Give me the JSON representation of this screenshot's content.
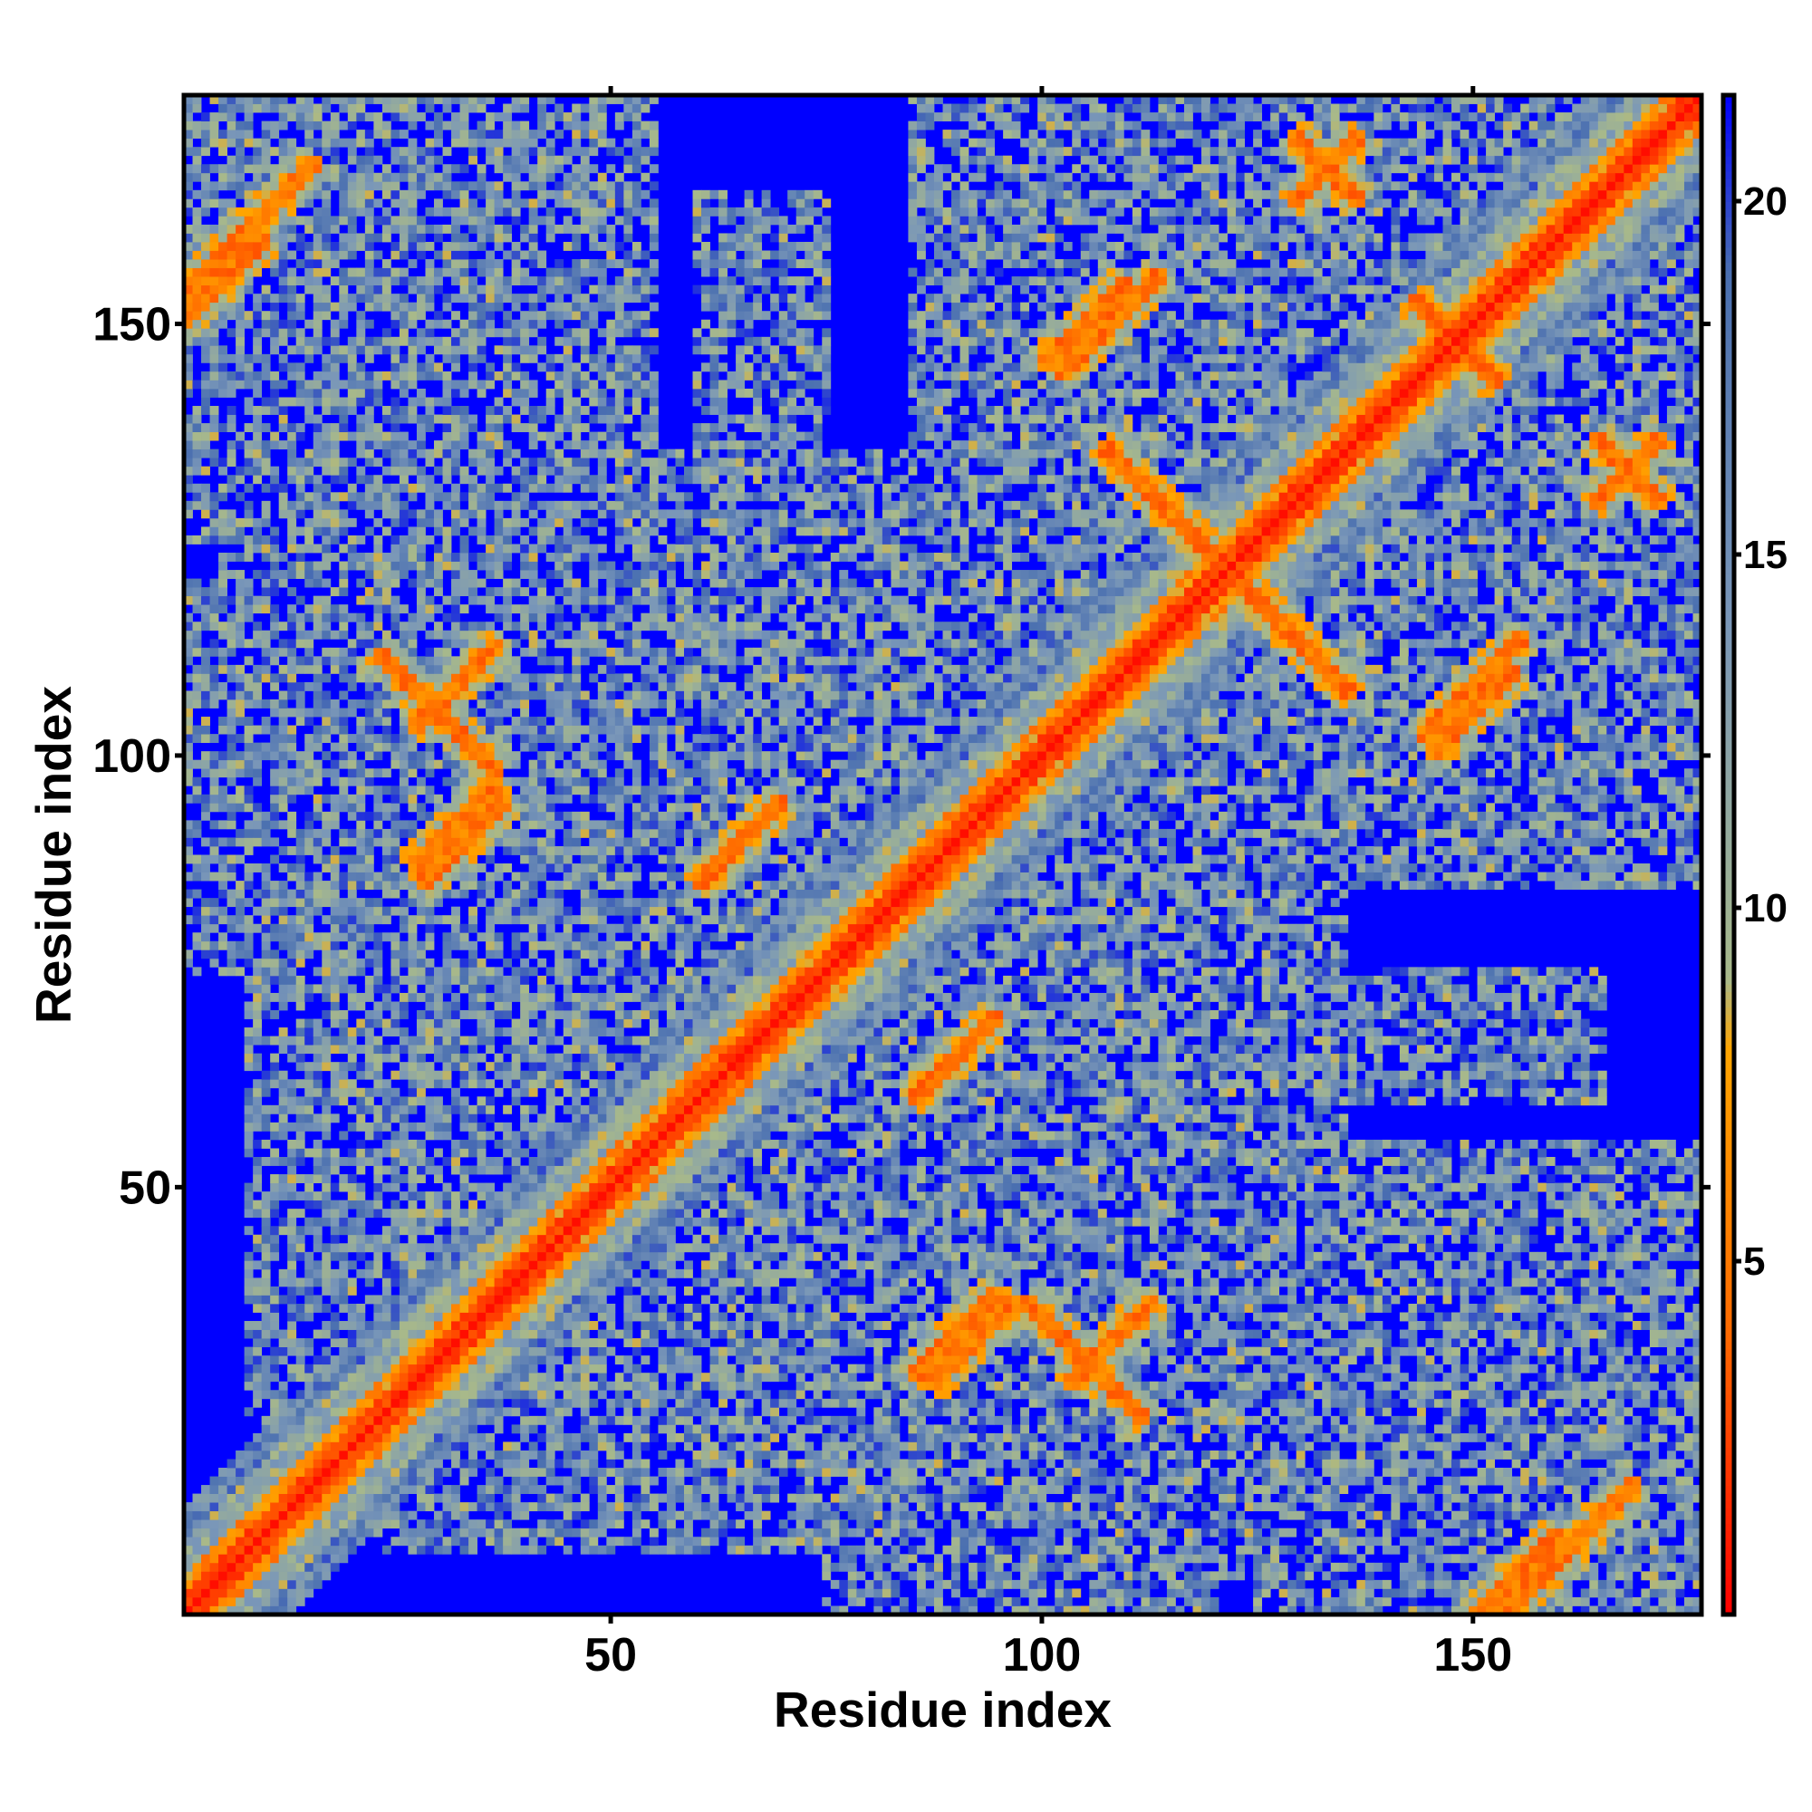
{
  "chart_data": {
    "type": "heatmap",
    "title": "",
    "xlabel": "Residue index",
    "ylabel": "Residue index",
    "n_residues": 176,
    "xlim": [
      1,
      176
    ],
    "ylim": [
      1,
      176
    ],
    "x_ticks": [
      "50",
      "100",
      "150"
    ],
    "x_tick_values": [
      50,
      100,
      150
    ],
    "y_ticks": [
      "50",
      "100",
      "150"
    ],
    "y_tick_values": [
      50,
      100,
      150
    ],
    "colorbar": {
      "ticks": [
        "5",
        "10",
        "15",
        "20"
      ],
      "tick_values": [
        5,
        10,
        15,
        20
      ],
      "range": [
        0,
        21.5
      ],
      "colors": [
        "#ff0000",
        "#ff6a00",
        "#ffa500",
        "#a8b98a",
        "#7a97b8",
        "#4a6fb0",
        "#0000ff"
      ],
      "color_stops": [
        0,
        4,
        8,
        9,
        14,
        19,
        21.5
      ]
    },
    "background_color": "#0000ff",
    "grid": false,
    "contact_regions": [
      {
        "xc": 2,
        "yc": 155,
        "length": 28,
        "orientation": "parallel",
        "width": 3
      },
      {
        "xc": 30,
        "yc": 105,
        "length": 14,
        "orientation": "anti",
        "width": 3
      },
      {
        "xc": 33,
        "yc": 90,
        "length": 10,
        "orientation": "parallel",
        "width": 3
      },
      {
        "xc": 65,
        "yc": 90,
        "length": 10,
        "orientation": "parallel",
        "width": 3
      },
      {
        "xc": 90,
        "yc": 65,
        "length": 10,
        "orientation": "parallel",
        "width": 3
      },
      {
        "xc": 92,
        "yc": 32,
        "length": 10,
        "orientation": "parallel",
        "width": 3
      },
      {
        "xc": 108,
        "yc": 32,
        "length": 10,
        "orientation": "parallel",
        "width": 3
      },
      {
        "xc": 108,
        "yc": 150,
        "length": 12,
        "orientation": "parallel",
        "width": 3
      },
      {
        "xc": 115,
        "yc": 128,
        "length": 16,
        "orientation": "anti",
        "width": 3
      },
      {
        "xc": 128,
        "yc": 115,
        "length": 16,
        "orientation": "anti",
        "width": 3
      },
      {
        "xc": 133,
        "yc": 168,
        "length": 8,
        "orientation": "anti",
        "width": 3
      },
      {
        "xc": 150,
        "yc": 105,
        "length": 10,
        "orientation": "parallel",
        "width": 3
      },
      {
        "xc": 168,
        "yc": 133,
        "length": 8,
        "orientation": "parallel",
        "width": 3
      },
      {
        "xc": 155,
        "yc": 5,
        "length": 10,
        "orientation": "parallel",
        "width": 3
      },
      {
        "xc": 148,
        "yc": 148,
        "length": 10,
        "orientation": "anti",
        "width": 3
      }
    ],
    "near_regions": [
      {
        "x": [
          1,
          55
        ],
        "y": [
          125,
          176
        ]
      },
      {
        "x": [
          1,
          65
        ],
        "y": [
          75,
          120
        ]
      },
      {
        "x": [
          10,
          80
        ],
        "y": [
          8,
          75
        ]
      },
      {
        "x": [
          60,
          135
        ],
        "y": [
          55,
          115
        ]
      },
      {
        "x": [
          85,
          130
        ],
        "y": [
          5,
          60
        ]
      },
      {
        "x": [
          85,
          140
        ],
        "y": [
          120,
          176
        ]
      },
      {
        "x": [
          125,
          176
        ],
        "y": [
          85,
          120
        ]
      },
      {
        "x": [
          125,
          176
        ],
        "y": [
          125,
          176
        ]
      },
      {
        "x": [
          125,
          176
        ],
        "y": [
          2,
          50
        ]
      },
      {
        "x": [
          60,
          75
        ],
        "y": [
          135,
          165
        ]
      }
    ]
  }
}
